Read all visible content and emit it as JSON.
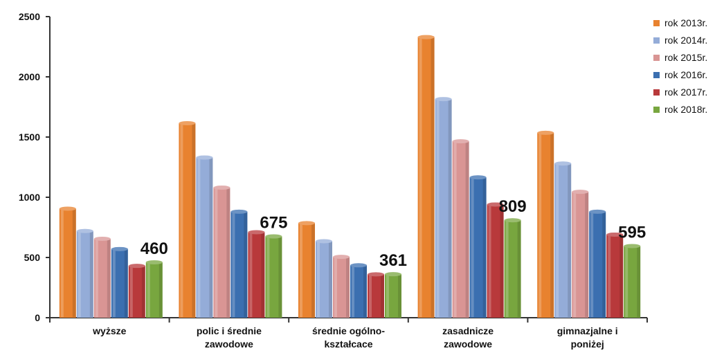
{
  "chart_data": {
    "type": "bar",
    "title": "",
    "xlabel": "",
    "ylabel": "",
    "ylim": [
      0,
      2500
    ],
    "yticks": [
      "0",
      "500",
      "1000",
      "1500",
      "2000",
      "2500"
    ],
    "grid": false,
    "legend_position": "right",
    "categories": [
      [
        "wyższe"
      ],
      [
        "polic i średnie",
        "zawodowe"
      ],
      [
        "średnie ogólno-",
        "kształcace"
      ],
      [
        "zasadnicze",
        "zawodowe"
      ],
      [
        "gimnazjalne i",
        "poniżej"
      ]
    ],
    "series": [
      {
        "name": "rok 2013r.",
        "color": "#e8822f",
        "values": [
          905,
          1615,
          785,
          2330,
          1535
        ]
      },
      {
        "name": "rok 2014r.",
        "color": "#94acd8",
        "values": [
          720,
          1330,
          635,
          1815,
          1280
        ]
      },
      {
        "name": "rok 2015r.",
        "color": "#d99594",
        "values": [
          655,
          1080,
          505,
          1465,
          1045
        ]
      },
      {
        "name": "rok 2016r.",
        "color": "#3b6fb0",
        "values": [
          570,
          880,
          435,
          1165,
          880
        ]
      },
      {
        "name": "rok 2017r.",
        "color": "#b8393b",
        "values": [
          430,
          710,
          360,
          940,
          690
        ]
      },
      {
        "name": "rok 2018r.",
        "color": "#78a63f",
        "values": [
          460,
          675,
          361,
          809,
          595
        ]
      }
    ],
    "data_labels": [
      "460",
      "675",
      "361",
      "809",
      "595"
    ]
  }
}
